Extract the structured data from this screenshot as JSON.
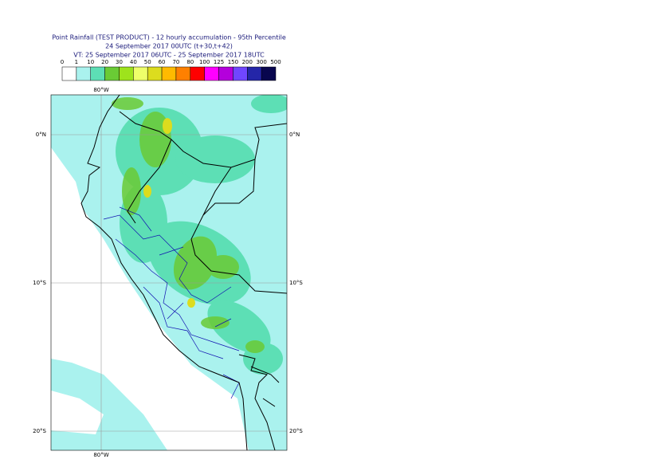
{
  "title": {
    "line1": "Point Rainfall (TEST PRODUCT) - 12 hourly accumulation - 95th Percentile",
    "line2": "24 September 2017 00UTC (t+30,t+42)",
    "line3": "VT: 25 September 2017 06UTC - 25 September 2017 18UTC"
  },
  "legend": {
    "labels": [
      0,
      1,
      10,
      20,
      30,
      40,
      50,
      60,
      70,
      80,
      100,
      125,
      150,
      200,
      300,
      500
    ],
    "colors": [
      "#ffffff",
      "#aaf2ee",
      "#5ddfb5",
      "#6acb35",
      "#9ee31c",
      "#eeff6a",
      "#dcdc1e",
      "#ffba00",
      "#ff8000",
      "#ff0000",
      "#ff00ff",
      "#b400dc",
      "#7046ff",
      "#2426a8",
      "#08064e"
    ]
  },
  "map": {
    "lon_labels": [
      "80°W"
    ],
    "lat_labels": [
      "0°N",
      "10°S",
      "20°S"
    ]
  }
}
